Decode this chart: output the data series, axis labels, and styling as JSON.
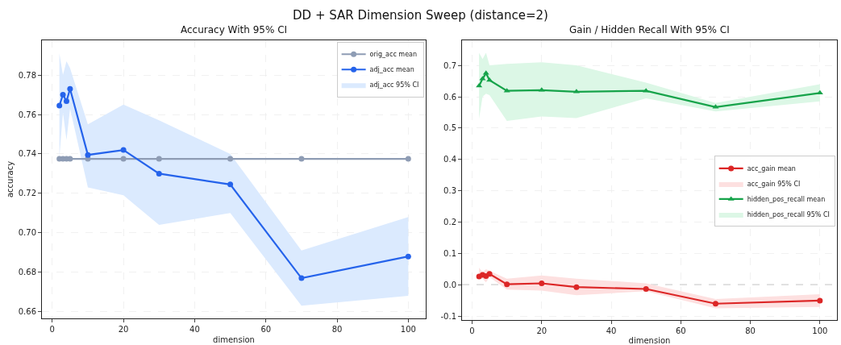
{
  "chart_data": [
    {
      "type": "line",
      "title": "Accuracy With 95% CI",
      "xlabel": "dimension",
      "ylabel": "accuracy",
      "annotations": [
        "DD + SAR Dimension Sweep (distance=2)"
      ],
      "x": [
        2,
        3,
        4,
        5,
        10,
        20,
        30,
        50,
        70,
        100
      ],
      "series": [
        {
          "name": "orig_acc mean",
          "color": "#8e9cb4",
          "marker": "circle",
          "values": [
            0.7375,
            0.7375,
            0.7375,
            0.7375,
            0.7375,
            0.7375,
            0.7375,
            0.7375,
            0.7375,
            0.7375
          ]
        },
        {
          "name": "adj_acc mean",
          "color": "#2563eb",
          "marker": "circle",
          "values": [
            0.7645,
            0.77,
            0.7667,
            0.773,
            0.7395,
            0.742,
            0.73,
            0.7245,
            0.677,
            0.688
          ]
        },
        {
          "name": "adj_acc 95% CI",
          "type": "area",
          "color": "#dbeafe",
          "values": [
            null,
            null,
            null,
            null,
            null,
            null,
            null,
            null,
            null,
            null
          ],
          "lower": [
            0.738,
            0.761,
            0.747,
            0.763,
            0.723,
            0.719,
            0.704,
            0.71,
            0.663,
            0.668
          ],
          "upper": [
            0.791,
            0.78,
            0.787,
            0.7835,
            0.755,
            0.765,
            0.757,
            0.74,
            0.691,
            0.708
          ]
        }
      ],
      "xlim": [
        -2.9,
        104.9
      ],
      "xticks": [
        0,
        20,
        40,
        60,
        80,
        100
      ],
      "ylim": [
        0.6566,
        0.7976
      ],
      "yticks": [
        0.66,
        0.68,
        {
          "value": 0.7,
          "label": "0.70"
        },
        0.72,
        0.74,
        0.76,
        0.78
      ],
      "grid": true,
      "legend": "top right",
      "line_style": "solid"
    },
    {
      "type": "line",
      "title": "Gain / Hidden Recall With 95% CI",
      "xlabel": "dimension",
      "x": [
        2,
        3,
        4,
        5,
        10,
        20,
        30,
        50,
        70,
        100
      ],
      "series": [
        {
          "name": "acc_gain mean",
          "color": "#dc2626",
          "marker": "circle",
          "values": [
            0.027,
            0.032,
            0.028,
            0.035,
            0.002,
            0.005,
            -0.007,
            -0.013,
            -0.06,
            -0.05
          ]
        },
        {
          "name": "acc_gain 95% CI",
          "type": "area",
          "color": "#fde0e0",
          "values": [
            null,
            null,
            null,
            null,
            null,
            null,
            null,
            null,
            null,
            null
          ],
          "lower": [
            0.02,
            0.02,
            0.008,
            0.025,
            -0.015,
            -0.018,
            -0.033,
            -0.02,
            -0.075,
            -0.07
          ],
          "upper": [
            0.055,
            0.04,
            0.05,
            0.045,
            0.02,
            0.03,
            0.02,
            0.005,
            -0.045,
            -0.03
          ]
        },
        {
          "name": "hidden_pos_recall mean",
          "color": "#16a34a",
          "marker": "triangle",
          "values": [
            0.635,
            0.657,
            0.675,
            0.653,
            0.619,
            0.621,
            0.616,
            0.619,
            0.567,
            0.612
          ]
        },
        {
          "name": "hidden_pos_recall 95% CI",
          "type": "area",
          "color": "#dcf7e6",
          "values": [
            null,
            null,
            null,
            null,
            null,
            null,
            null,
            null,
            null,
            null
          ],
          "lower": [
            0.53,
            0.6,
            0.61,
            0.605,
            0.523,
            0.537,
            0.532,
            0.595,
            0.553,
            0.585
          ],
          "upper": [
            0.74,
            0.72,
            0.74,
            0.7,
            0.705,
            0.71,
            0.7,
            0.645,
            0.58,
            0.64
          ]
        }
      ],
      "ref_lines": [
        {
          "axis": "y",
          "value": 0,
          "color": "#999999",
          "line_style": "dashed"
        }
      ],
      "xlim": [
        -2.9,
        104.9
      ],
      "xticks": [
        0,
        20,
        40,
        60,
        80,
        100
      ],
      "ylim": [
        -0.112,
        0.78
      ],
      "yticks": [
        -0.1,
        {
          "value": 0,
          "label": "0.0"
        },
        0.1,
        0.2,
        0.3,
        0.4,
        0.5,
        0.6,
        0.7
      ],
      "grid": true,
      "legend": "right",
      "line_style": "solid"
    }
  ]
}
